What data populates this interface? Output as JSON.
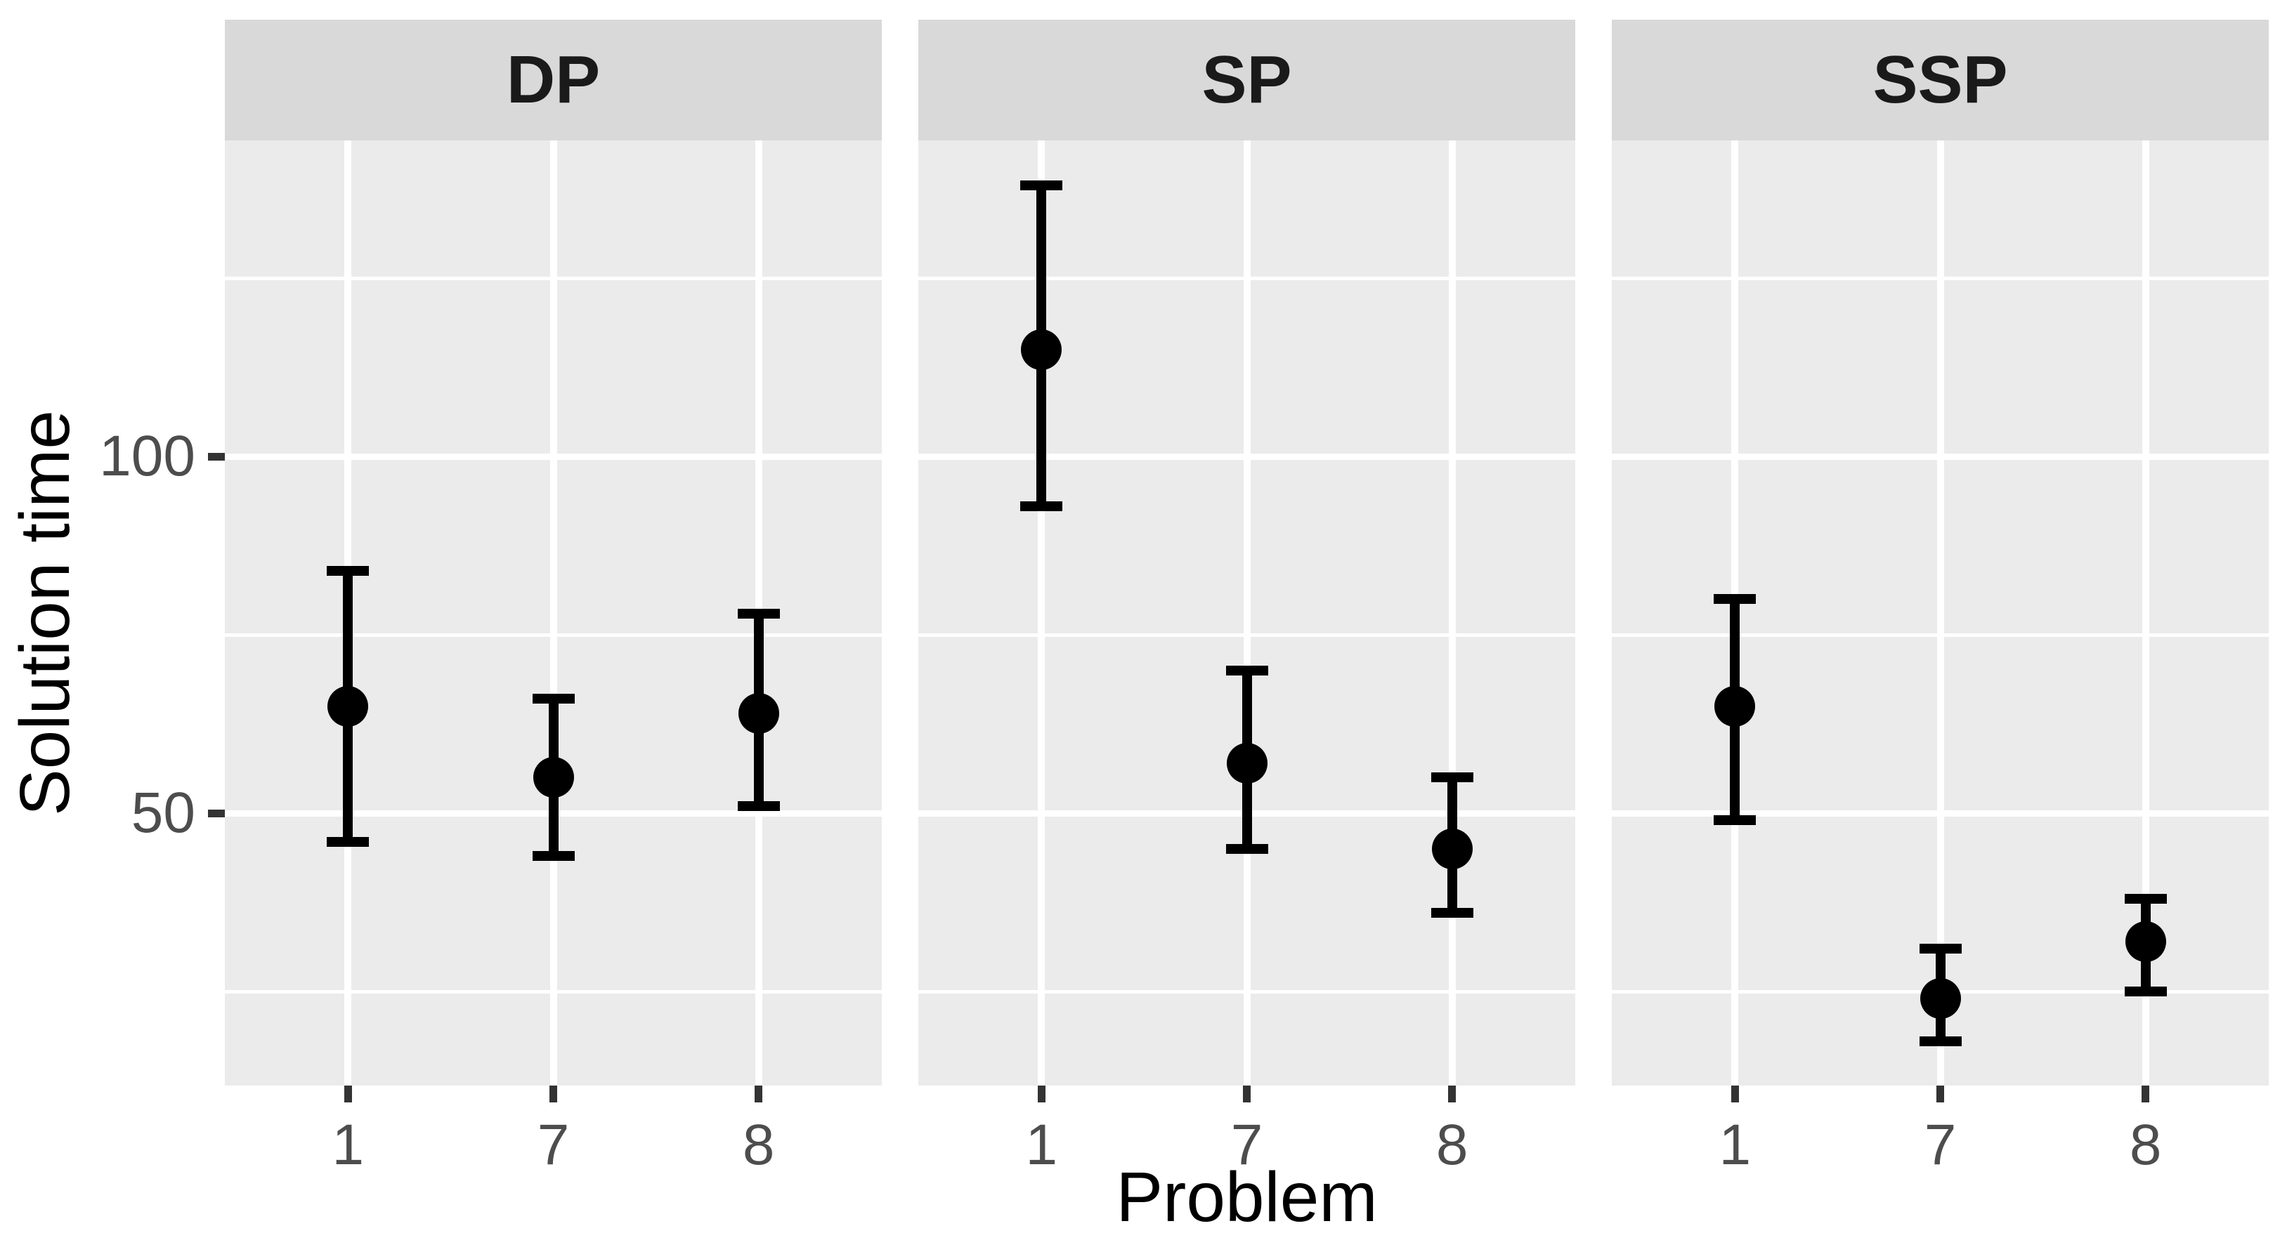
{
  "chart_data": {
    "type": "scatter",
    "subtype": "faceted-pointrange",
    "title": "",
    "xlabel": "Problem",
    "ylabel": "Solution time",
    "x_categories": [
      "1",
      "7",
      "8"
    ],
    "y_ticks": [
      50,
      100
    ],
    "y_minor_gridlines": [
      25,
      75,
      125
    ],
    "ylim": [
      12,
      144.5
    ],
    "grid": true,
    "legend": false,
    "facets": [
      {
        "label": "DP",
        "points": [
          {
            "x": "1",
            "y": 65,
            "ymin": 46,
            "ymax": 84
          },
          {
            "x": "7",
            "y": 55,
            "ymin": 44,
            "ymax": 66
          },
          {
            "x": "8",
            "y": 64,
            "ymin": 51,
            "ymax": 78
          }
        ]
      },
      {
        "label": "SP",
        "points": [
          {
            "x": "1",
            "y": 115,
            "ymin": 93,
            "ymax": 138
          },
          {
            "x": "7",
            "y": 57,
            "ymin": 45,
            "ymax": 70
          },
          {
            "x": "8",
            "y": 45,
            "ymin": 36,
            "ymax": 55
          }
        ]
      },
      {
        "label": "SSP",
        "points": [
          {
            "x": "1",
            "y": 65,
            "ymin": 49,
            "ymax": 80
          },
          {
            "x": "7",
            "y": 24,
            "ymin": 18,
            "ymax": 31
          },
          {
            "x": "8",
            "y": 32,
            "ymin": 25,
            "ymax": 38
          }
        ]
      }
    ],
    "colors": {
      "figure_background": "#FFFFFF",
      "panel_background": "#EBEBEB",
      "strip_background": "#D9D9D9",
      "strip_text": "#1A1A1A",
      "gridline": "#FFFFFF",
      "point": "#000000",
      "errorbar": "#000000",
      "tick_mark": "#333333",
      "tick_label": "#4D4D4D",
      "axis_title": "#000000"
    }
  }
}
